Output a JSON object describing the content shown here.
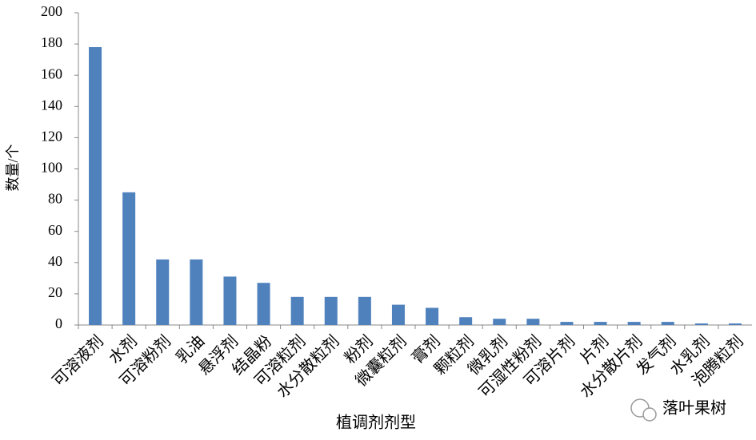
{
  "chart_data": {
    "type": "bar",
    "ylabel": "数量/个",
    "xlabel": "植调剂剂型",
    "watermark": "落叶果树",
    "categories": [
      "可溶液剂",
      "水剂",
      "可溶粉剂",
      "乳油",
      "悬浮剂",
      "结晶粉",
      "可溶粒剂",
      "水分散粒剂",
      "粉剂",
      "微囊粒剂",
      "膏剂",
      "颗粒剂",
      "微乳剂",
      "可湿性粉剂",
      "可溶片剂",
      "片剂",
      "水分散片剂",
      "发气剂",
      "水乳剂",
      "泡腾粒剂"
    ],
    "values": [
      178,
      85,
      42,
      42,
      31,
      27,
      18,
      18,
      18,
      13,
      11,
      5,
      4,
      4,
      2,
      2,
      2,
      2,
      1,
      1
    ],
    "color": "#4f81bd",
    "ylim": [
      0,
      200
    ],
    "yticks": [
      0,
      20,
      40,
      60,
      80,
      100,
      120,
      140,
      160,
      180,
      200
    ],
    "grid": false
  }
}
